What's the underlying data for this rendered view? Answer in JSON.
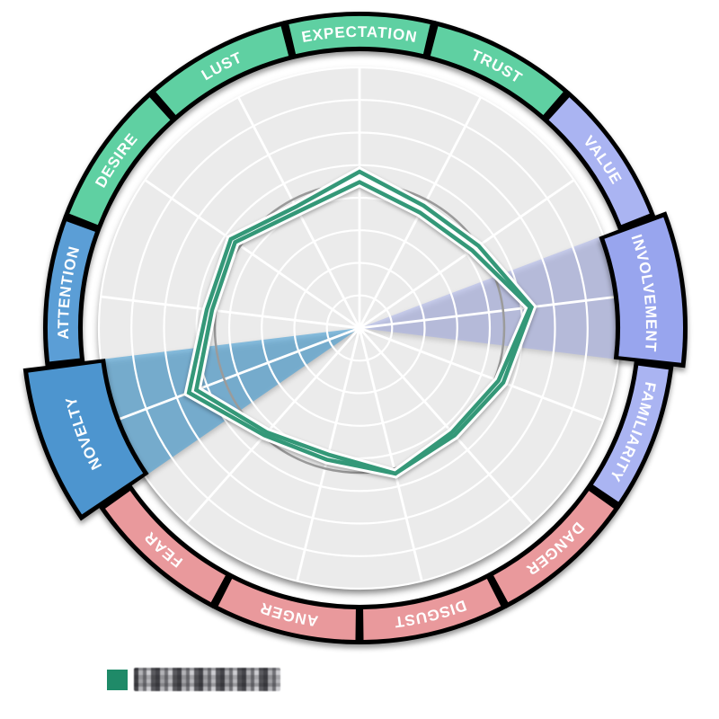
{
  "chart_data": {
    "type": "radar",
    "title": "",
    "direction": "clockwise-from-top",
    "scale": {
      "min": 0,
      "max": 100,
      "note": "no numeric tick labels visible; values estimated from grid rings (outer ring = 100)"
    },
    "grid": {
      "rings": 8,
      "spokes": 13,
      "disc_color": "#ebebeb",
      "line_color": "#ffffff",
      "grid_on": true
    },
    "categories": [
      {
        "label": "EXPECTATION",
        "group": "green",
        "color": "#5fd0a2",
        "highlighted": false
      },
      {
        "label": "TRUST",
        "group": "green",
        "color": "#5fd0a2",
        "highlighted": false
      },
      {
        "label": "VALUE",
        "group": "periwinkle",
        "color": "#aab4f2",
        "highlighted": false
      },
      {
        "label": "INVOLVEMENT",
        "group": "periwinkle",
        "color": "#98a5ee",
        "highlighted": true,
        "wedge_color": "rgba(152,165,238,0.42)"
      },
      {
        "label": "FAMILIARITY",
        "group": "periwinkle",
        "color": "#aab4f2",
        "highlighted": false
      },
      {
        "label": "DANGER",
        "group": "red",
        "color": "#e9999c",
        "highlighted": false
      },
      {
        "label": "DISGUST",
        "group": "red",
        "color": "#e9999c",
        "highlighted": false
      },
      {
        "label": "ANGER",
        "group": "red",
        "color": "#e9999c",
        "highlighted": false
      },
      {
        "label": "FEAR",
        "group": "red",
        "color": "#e9999c",
        "highlighted": false
      },
      {
        "label": "NOVELTY",
        "group": "blue",
        "color": "#4d95cf",
        "highlighted": true,
        "wedge_color": "rgba(70,160,215,0.6)"
      },
      {
        "label": "ATTENTION",
        "group": "blue",
        "color": "#5b9ed6",
        "highlighted": false
      },
      {
        "label": "DESIRE",
        "group": "green",
        "color": "#5fd0a2",
        "highlighted": false
      },
      {
        "label": "LUST",
        "group": "green",
        "color": "#5fd0a2",
        "highlighted": false
      }
    ],
    "series": [
      {
        "name": "series-outer",
        "color": "#349878",
        "values": [
          60,
          53,
          55.5,
          66.5,
          59,
          55,
          57.5,
          52,
          55,
          70,
          59,
          60,
          52.5
        ]
      },
      {
        "name": "series-inner",
        "color": "#349878",
        "values": [
          56,
          50,
          52.5,
          66,
          57,
          53.5,
          57.5,
          50,
          53.5,
          67,
          57,
          58,
          50.5
        ]
      }
    ],
    "reference_circle": {
      "value": 55.5,
      "color": "#9b9b9b"
    },
    "legend_position": "bottom-left"
  },
  "legend": {
    "items": [
      {
        "swatch_color": "#1f8a68",
        "label_obscured": true
      }
    ]
  }
}
